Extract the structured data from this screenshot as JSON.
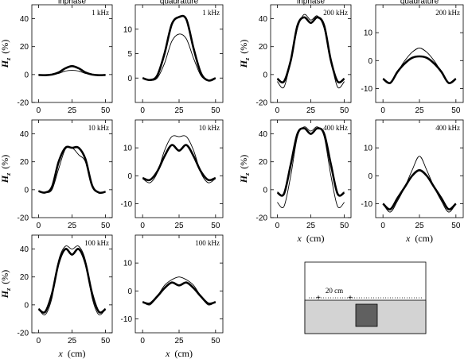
{
  "panels": [
    {
      "id": "1k-in",
      "col_title": "inphase",
      "freq": "1 kHz",
      "ylim": [
        -20,
        50
      ],
      "yticks": [
        -20,
        0,
        20,
        40
      ],
      "thin": [
        [
          0,
          0
        ],
        [
          5,
          0
        ],
        [
          10,
          0
        ],
        [
          15,
          0.8
        ],
        [
          20,
          2.5
        ],
        [
          25,
          3
        ],
        [
          30,
          2.5
        ],
        [
          35,
          0.8
        ],
        [
          40,
          0
        ],
        [
          45,
          0
        ],
        [
          50,
          0
        ]
      ],
      "thick": [
        [
          0,
          -0.3
        ],
        [
          5,
          -0.5
        ],
        [
          10,
          0
        ],
        [
          15,
          1.5
        ],
        [
          20,
          4.5
        ],
        [
          25,
          6
        ],
        [
          30,
          4.5
        ],
        [
          35,
          1.5
        ],
        [
          40,
          0
        ],
        [
          45,
          -0.5
        ],
        [
          50,
          -0.3
        ]
      ]
    },
    {
      "id": "1k-q",
      "col_title": "quadrature",
      "freq": "1 kHz",
      "ylim": [
        -5,
        15
      ],
      "yticks": [
        0,
        5,
        10
      ],
      "thin": [
        [
          0,
          0
        ],
        [
          5,
          -0.5
        ],
        [
          10,
          0
        ],
        [
          15,
          3
        ],
        [
          20,
          7.5
        ],
        [
          25,
          9
        ],
        [
          30,
          8
        ],
        [
          35,
          4
        ],
        [
          40,
          0.5
        ],
        [
          45,
          -0.5
        ],
        [
          50,
          0
        ]
      ],
      "thick": [
        [
          0,
          0
        ],
        [
          5,
          -0.4
        ],
        [
          10,
          0.5
        ],
        [
          15,
          5
        ],
        [
          20,
          11
        ],
        [
          25,
          12.5
        ],
        [
          30,
          12
        ],
        [
          35,
          6
        ],
        [
          40,
          1
        ],
        [
          45,
          -0.5
        ],
        [
          50,
          0
        ]
      ]
    },
    {
      "id": "10k-in",
      "freq": "10 kHz",
      "ylim": [
        -20,
        50
      ],
      "yticks": [
        -20,
        0,
        20,
        40
      ],
      "thin": [
        [
          0,
          -1
        ],
        [
          5,
          -2
        ],
        [
          10,
          0
        ],
        [
          15,
          15
        ],
        [
          20,
          29
        ],
        [
          25,
          30
        ],
        [
          30,
          25
        ],
        [
          35,
          20
        ],
        [
          40,
          2
        ],
        [
          45,
          -2
        ],
        [
          50,
          -1.5
        ]
      ],
      "thick": [
        [
          0,
          -1
        ],
        [
          5,
          -2
        ],
        [
          10,
          2
        ],
        [
          15,
          20
        ],
        [
          20,
          30
        ],
        [
          25,
          30
        ],
        [
          30,
          30
        ],
        [
          35,
          22
        ],
        [
          40,
          3
        ],
        [
          45,
          -2
        ],
        [
          50,
          -1.5
        ]
      ]
    },
    {
      "id": "10k-q",
      "freq": "10 kHz",
      "ylim": [
        -15,
        20
      ],
      "yticks": [
        -10,
        0,
        10
      ],
      "thin": [
        [
          0,
          -1
        ],
        [
          5,
          -2.5
        ],
        [
          10,
          1
        ],
        [
          15,
          9
        ],
        [
          20,
          14
        ],
        [
          25,
          14
        ],
        [
          30,
          14
        ],
        [
          35,
          9
        ],
        [
          40,
          1
        ],
        [
          45,
          -2.5
        ],
        [
          50,
          -1
        ]
      ],
      "thick": [
        [
          0,
          -0.8
        ],
        [
          5,
          -1.5
        ],
        [
          10,
          1.5
        ],
        [
          15,
          7
        ],
        [
          20,
          11
        ],
        [
          25,
          9
        ],
        [
          30,
          11
        ],
        [
          35,
          7
        ],
        [
          40,
          1.5
        ],
        [
          45,
          -1.5
        ],
        [
          50,
          -0.8
        ]
      ]
    },
    {
      "id": "100k-in",
      "freq": "100 kHz",
      "ylim": [
        -20,
        50
      ],
      "yticks": [
        -20,
        0,
        20,
        40
      ],
      "thin": [
        [
          0,
          -3
        ],
        [
          5,
          -7
        ],
        [
          10,
          5
        ],
        [
          15,
          32
        ],
        [
          20,
          42
        ],
        [
          25,
          40
        ],
        [
          30,
          42
        ],
        [
          35,
          32
        ],
        [
          40,
          5
        ],
        [
          45,
          -7
        ],
        [
          50,
          -3
        ]
      ],
      "thick": [
        [
          0,
          -3
        ],
        [
          5,
          -5
        ],
        [
          10,
          8
        ],
        [
          15,
          30
        ],
        [
          20,
          40
        ],
        [
          25,
          36
        ],
        [
          30,
          40
        ],
        [
          35,
          30
        ],
        [
          40,
          8
        ],
        [
          45,
          -5
        ],
        [
          50,
          -3
        ]
      ]
    },
    {
      "id": "100k-q",
      "freq": "100 kHz",
      "ylim": [
        -15,
        20
      ],
      "yticks": [
        -10,
        0,
        10
      ],
      "thin": [
        [
          0,
          -4
        ],
        [
          5,
          -5
        ],
        [
          10,
          -2
        ],
        [
          15,
          2
        ],
        [
          20,
          4
        ],
        [
          25,
          5
        ],
        [
          30,
          4
        ],
        [
          35,
          2
        ],
        [
          40,
          -2
        ],
        [
          45,
          -5
        ],
        [
          50,
          -4
        ]
      ],
      "thick": [
        [
          0,
          -4
        ],
        [
          5,
          -4.5
        ],
        [
          10,
          -2
        ],
        [
          15,
          1
        ],
        [
          20,
          3
        ],
        [
          25,
          2
        ],
        [
          30,
          3
        ],
        [
          35,
          1
        ],
        [
          40,
          -2
        ],
        [
          45,
          -4.5
        ],
        [
          50,
          -4
        ]
      ]
    },
    {
      "id": "200k-in",
      "col_title": "inphase",
      "freq": "200 kHz",
      "ylim": [
        -20,
        50
      ],
      "yticks": [
        -20,
        0,
        20,
        40
      ],
      "thin": [
        [
          0,
          -5
        ],
        [
          5,
          -9
        ],
        [
          10,
          10
        ],
        [
          15,
          33
        ],
        [
          20,
          43
        ],
        [
          25,
          39
        ],
        [
          30,
          42
        ],
        [
          35,
          33
        ],
        [
          40,
          10
        ],
        [
          45,
          -9
        ],
        [
          50,
          -5
        ]
      ],
      "thick": [
        [
          0,
          -3
        ],
        [
          5,
          -5
        ],
        [
          10,
          10
        ],
        [
          15,
          35
        ],
        [
          20,
          41
        ],
        [
          25,
          37
        ],
        [
          30,
          41
        ],
        [
          35,
          35
        ],
        [
          40,
          10
        ],
        [
          45,
          -5
        ],
        [
          50,
          -3
        ]
      ]
    },
    {
      "id": "200k-q",
      "col_title": "quadrature",
      "freq": "200 kHz",
      "ylim": [
        -15,
        20
      ],
      "yticks": [
        -10,
        0,
        10
      ],
      "thin": [
        [
          0,
          -6.5
        ],
        [
          5,
          -8
        ],
        [
          10,
          -4
        ],
        [
          15,
          0
        ],
        [
          20,
          3
        ],
        [
          25,
          4.5
        ],
        [
          30,
          3
        ],
        [
          35,
          0
        ],
        [
          40,
          -4
        ],
        [
          45,
          -8
        ],
        [
          50,
          -6.5
        ]
      ],
      "thick": [
        [
          0,
          -6.5
        ],
        [
          5,
          -8
        ],
        [
          10,
          -4
        ],
        [
          15,
          -1
        ],
        [
          20,
          1
        ],
        [
          25,
          1.5
        ],
        [
          30,
          1
        ],
        [
          35,
          -1
        ],
        [
          40,
          -4
        ],
        [
          45,
          -8
        ],
        [
          50,
          -6.5
        ]
      ]
    },
    {
      "id": "400k-in",
      "freq": "400 kHz",
      "ylim": [
        -20,
        50
      ],
      "yticks": [
        -20,
        0,
        20,
        40
      ],
      "thin": [
        [
          0,
          -9
        ],
        [
          5,
          -12
        ],
        [
          10,
          10
        ],
        [
          15,
          38
        ],
        [
          20,
          45
        ],
        [
          25,
          42
        ],
        [
          30,
          45
        ],
        [
          35,
          38
        ],
        [
          40,
          10
        ],
        [
          45,
          -12
        ],
        [
          50,
          -9
        ]
      ],
      "thick": [
        [
          0,
          -2
        ],
        [
          5,
          -3
        ],
        [
          10,
          18
        ],
        [
          15,
          40
        ],
        [
          20,
          44
        ],
        [
          25,
          40
        ],
        [
          30,
          44
        ],
        [
          35,
          40
        ],
        [
          40,
          18
        ],
        [
          45,
          -3
        ],
        [
          50,
          -2
        ]
      ]
    },
    {
      "id": "400k-q",
      "freq": "400 kHz",
      "ylim": [
        -15,
        20
      ],
      "yticks": [
        -10,
        0,
        10
      ],
      "thin": [
        [
          0,
          -10
        ],
        [
          5,
          -13
        ],
        [
          10,
          -9
        ],
        [
          15,
          -4
        ],
        [
          20,
          2
        ],
        [
          25,
          7
        ],
        [
          30,
          2
        ],
        [
          35,
          -4
        ],
        [
          40,
          -9
        ],
        [
          45,
          -13
        ],
        [
          50,
          -10
        ]
      ],
      "thick": [
        [
          0,
          -10
        ],
        [
          5,
          -12
        ],
        [
          10,
          -8
        ],
        [
          15,
          -4
        ],
        [
          20,
          0
        ],
        [
          25,
          2
        ],
        [
          30,
          0
        ],
        [
          35,
          -4
        ],
        [
          40,
          -8
        ],
        [
          45,
          -12
        ],
        [
          50,
          -10
        ]
      ]
    }
  ],
  "ylabel": {
    "main": "H",
    "sub": "z",
    "unit": "(%)"
  },
  "xlabel": {
    "var": "x",
    "unit": "(cm)"
  },
  "xticks": [
    0,
    25,
    50
  ],
  "xlim": [
    -5,
    55
  ],
  "inset": {
    "label": "20 cm"
  },
  "colors": {
    "thin": "#000000",
    "thick": "#000000",
    "ground": "#d3d3d3",
    "target": "#606060"
  }
}
